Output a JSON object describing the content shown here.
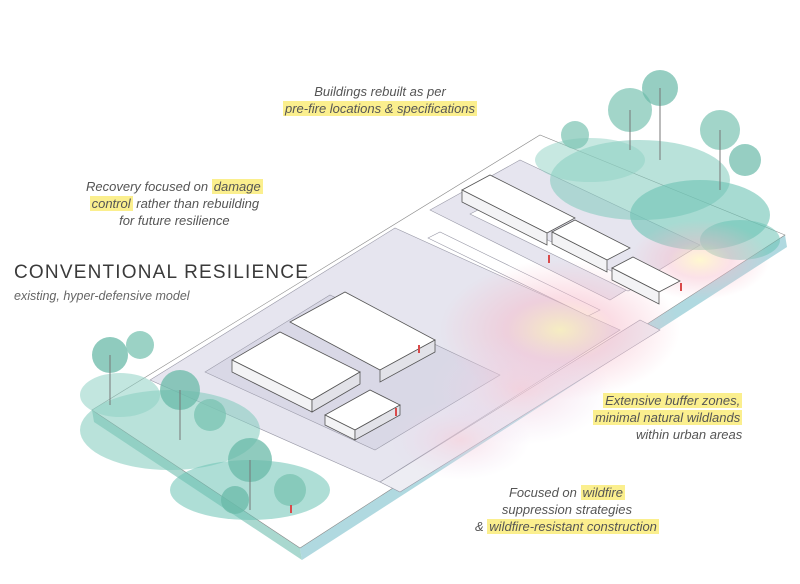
{
  "title": "CONVENTIONAL RESILIENCE",
  "subtitle": "existing, hyper-defensive model",
  "annotations": {
    "top": {
      "line1": "Buildings rebuilt as per",
      "line2_hl": "pre-fire locations & specifications"
    },
    "left": {
      "line1_pre": "Recovery focused on ",
      "line1_hl": "damage",
      "line2_hl": "control",
      "line2_post": " rather than rebuilding",
      "line3": "for future resilience"
    },
    "right": {
      "line1_hl": "Extensive buffer zones,",
      "line2_hl": "minimal natural wildlands",
      "line3": "within urban areas"
    },
    "bottom": {
      "line1_pre": "Focused on ",
      "line1_hl": "wildfire",
      "line2": "suppression strategies",
      "line3_pre": "& ",
      "line3_hl": "wildfire-resistant construction"
    }
  },
  "colors": {
    "highlight": "#fbef8e",
    "slab_side": "#a9d8cf",
    "slab_top": "#ffffff",
    "pavement": "#e4e4ee",
    "vegetation": "#6cc3b4",
    "fire_glow": "#f4b8c8",
    "line": "#555555"
  }
}
